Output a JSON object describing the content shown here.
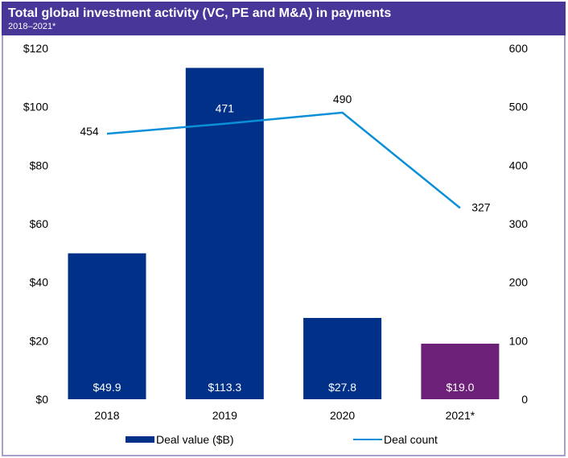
{
  "header": {
    "title": "Total global investment activity (VC, PE and M&A) in payments",
    "subtitle": "2018–2021*"
  },
  "colors": {
    "header_bg": "#483698",
    "frame_border": "#a99fcb",
    "bar": "#003087",
    "bar_highlight": "#6d2077",
    "line": "#0b8fd8"
  },
  "chart_data": {
    "type": "bar",
    "title": "Total global investment activity (VC, PE and M&A) in payments",
    "subtitle": "2018–2021*",
    "categories": [
      "2018",
      "2019",
      "2020",
      "2021*"
    ],
    "series": [
      {
        "name": "Deal value ($B)",
        "type": "bar",
        "axis": "left",
        "values": [
          49.9,
          113.3,
          27.8,
          19.0
        ],
        "labels": [
          "$49.9",
          "$113.3",
          "$27.8",
          "$19.0"
        ],
        "highlight_index": 3
      },
      {
        "name": "Deal count",
        "type": "line",
        "axis": "right",
        "values": [
          454,
          471,
          490,
          327
        ],
        "labels": [
          "454",
          "471",
          "490",
          "327"
        ]
      }
    ],
    "left_axis": {
      "ylim": [
        0,
        120
      ],
      "ticks": [
        0,
        20,
        40,
        60,
        80,
        100,
        120
      ],
      "tick_labels": [
        "$0",
        "$20",
        "$40",
        "$60",
        "$80",
        "$100",
        "$120"
      ]
    },
    "right_axis": {
      "ylim": [
        0,
        600
      ],
      "ticks": [
        0,
        100,
        200,
        300,
        400,
        500,
        600
      ],
      "tick_labels": [
        "0",
        "100",
        "200",
        "300",
        "400",
        "500",
        "600"
      ]
    },
    "xlabel": "",
    "ylabel": "",
    "grid": false,
    "legend": {
      "position": "bottom",
      "entries": [
        "Deal value ($B)",
        "Deal count"
      ]
    }
  }
}
